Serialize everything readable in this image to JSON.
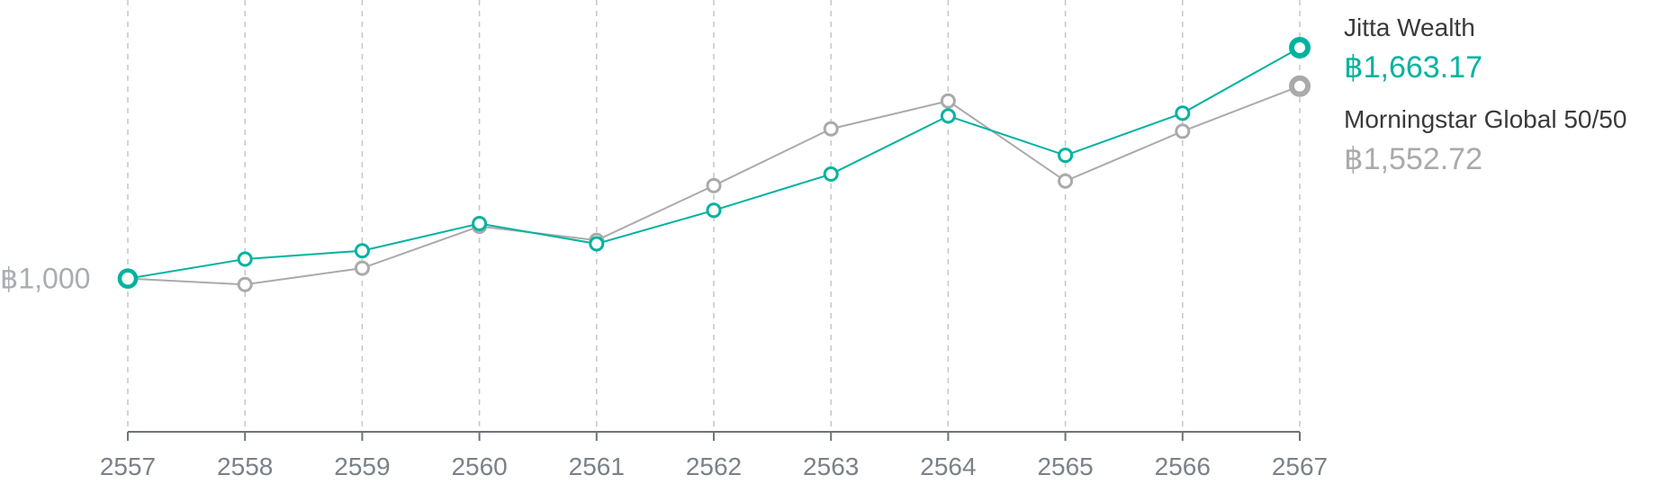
{
  "chart_data": {
    "type": "line",
    "title": "",
    "xlabel": "",
    "ylabel": "",
    "x": [
      "2557",
      "2558",
      "2559",
      "2560",
      "2561",
      "2562",
      "2563",
      "2564",
      "2565",
      "2566",
      "2567"
    ],
    "y_tick_label": "฿1,000",
    "y_tick_value": 1000,
    "ylim": [
      560,
      1800
    ],
    "grid": "vertical-dashed",
    "legend_position": "right",
    "series": [
      {
        "name": "Jitta Wealth",
        "final_label": "฿1,663.17",
        "color": "#00b39f",
        "values": [
          1000,
          1056,
          1080,
          1158,
          1100,
          1196,
          1300,
          1467,
          1354,
          1475,
          1663.17
        ]
      },
      {
        "name": "Morningstar Global 50/50",
        "final_label": "฿1,552.72",
        "color": "#aaaaaa",
        "values": [
          1000,
          983,
          1030,
          1150,
          1110,
          1267,
          1430,
          1510,
          1280,
          1423,
          1552.72
        ]
      }
    ]
  }
}
